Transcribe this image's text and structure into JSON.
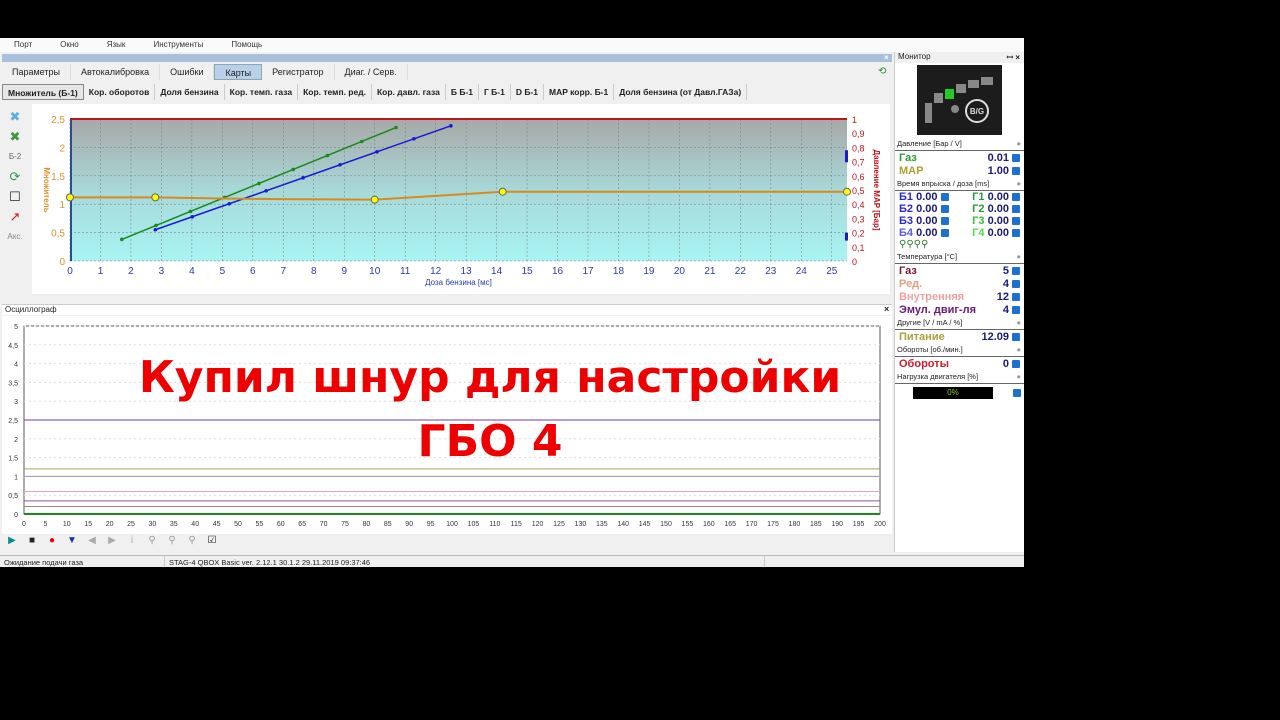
{
  "menu": [
    "Порт",
    "Окно",
    "Язык",
    "Инструменты",
    "Помощь"
  ],
  "tabs": [
    "Параметры",
    "Автокалибровка",
    "Ошибки",
    "Карты",
    "Регистратор",
    "Диаг. / Серв."
  ],
  "active_tab": "Карты",
  "subtabs": [
    "Множитель (Б-1)",
    "Кор. оборотов",
    "Доля бензина",
    "Кор. темп. газа",
    "Кор. темп. ред.",
    "Кор. давл. газа",
    "Б Б-1",
    "Г Б-1",
    "D Б-1",
    "MAP корр. Б-1",
    "Доля бензина (от Давл.ГАЗа)"
  ],
  "tools": {
    "b2": "Б-2",
    "acc": "Акс."
  },
  "map": {
    "ylabel": "Множитель",
    "y2label": "Давление MAP [Бар]",
    "xlabel": "Доза бензина [мс]",
    "x_ticks": [
      0,
      1,
      2,
      3,
      4,
      5,
      6,
      7,
      8,
      9,
      10,
      11,
      12,
      13,
      14,
      15,
      16,
      17,
      18,
      19,
      20,
      21,
      22,
      23,
      24,
      25
    ],
    "y_ticks": [
      "0",
      "0,5",
      "1",
      "1,5",
      "2",
      "2,5"
    ],
    "y2_ticks": [
      "0",
      "0,1",
      "0,2",
      "0,3",
      "0,4",
      "0,5",
      "0,6",
      "0,7",
      "0,8",
      "0,9",
      "1"
    ],
    "multiplier_curve": [
      [
        0,
        1.12
      ],
      [
        2.8,
        1.12
      ],
      [
        5,
        1.1
      ],
      [
        7,
        1.09
      ],
      [
        10,
        1.08
      ],
      [
        14.2,
        1.22
      ],
      [
        25.5,
        1.22
      ]
    ],
    "green_fit": [
      [
        1.7,
        0.38
      ],
      [
        10.7,
        2.35
      ]
    ],
    "blue_fit": [
      [
        2.8,
        0.55
      ],
      [
        12.5,
        2.38
      ]
    ],
    "colors": {
      "curve": "#d88a1e",
      "green": "#1a8a1a",
      "blue": "#1a1ad0",
      "limit": "#c0141e"
    }
  },
  "osc": {
    "title": "Осциллограф",
    "y_ticks": [
      "0",
      "0,5",
      "1",
      "1,5",
      "2",
      "2,5",
      "3",
      "3,5",
      "4",
      "4,5",
      "5"
    ],
    "x_ticks": [
      0,
      5,
      10,
      15,
      20,
      25,
      30,
      35,
      40,
      45,
      50,
      55,
      60,
      65,
      70,
      75,
      80,
      85,
      90,
      95,
      100,
      105,
      110,
      115,
      120,
      125,
      130,
      135,
      140,
      145,
      150,
      155,
      160,
      165,
      170,
      175,
      180,
      185,
      190,
      195,
      200
    ],
    "lines": [
      {
        "v": 2.5,
        "c": "#7a3a9a"
      },
      {
        "v": 1.2,
        "c": "#b0a060"
      },
      {
        "v": 1.0,
        "c": "#999"
      },
      {
        "v": 0.6,
        "c": "#e0a0d0"
      },
      {
        "v": 0.35,
        "c": "#8a5a9a"
      },
      {
        "v": 0.2,
        "c": "#b08080"
      },
      {
        "v": 0,
        "c": "#1a8a1a"
      }
    ]
  },
  "overlay": {
    "line1": "Купил шнур для настройки",
    "line2": "ГБО 4"
  },
  "status": {
    "state": "Ожидание подачи газа",
    "version": "STAG-4 QBOX Basic  ver. 2.12.1  30.1.2   29.11.2019 09:37:46"
  },
  "monitor": {
    "title": "Монитор",
    "logo": "B/G",
    "pressure_title": "Давление [Бар / V]",
    "gas_label": "Газ",
    "gas": "0.01",
    "map_label": "MAP",
    "map": "1.00",
    "inj_title": "Время впрыска / доза [ms]",
    "inj": [
      [
        "Б1",
        "0.00",
        "Г1",
        "0.00"
      ],
      [
        "Б2",
        "0.00",
        "Г2",
        "0.00"
      ],
      [
        "Б3",
        "0.00",
        "Г3",
        "0.00"
      ],
      [
        "Б4",
        "0.00",
        "Г4",
        "0.00"
      ]
    ],
    "temp_title": "Температура [°C]",
    "temps": [
      {
        "l": "Газ",
        "v": "5",
        "c": "#7a1a2a"
      },
      {
        "l": "Ред.",
        "v": "4",
        "c": "#e0a080"
      },
      {
        "l": "Внутренняя",
        "v": "12",
        "c": "#f0a0a0"
      },
      {
        "l": "Эмул. двиг-ля",
        "v": "4",
        "c": "#6a1a7a"
      }
    ],
    "other_title": "Другие [V / mA / %]",
    "power_label": "Питание",
    "power": "12.09",
    "rpm_title": "Обороты [об./мин.]",
    "rpm_label": "Обороты",
    "rpm": "0",
    "load_title": "Нагрузка двигателя [%]",
    "load": "0%"
  }
}
